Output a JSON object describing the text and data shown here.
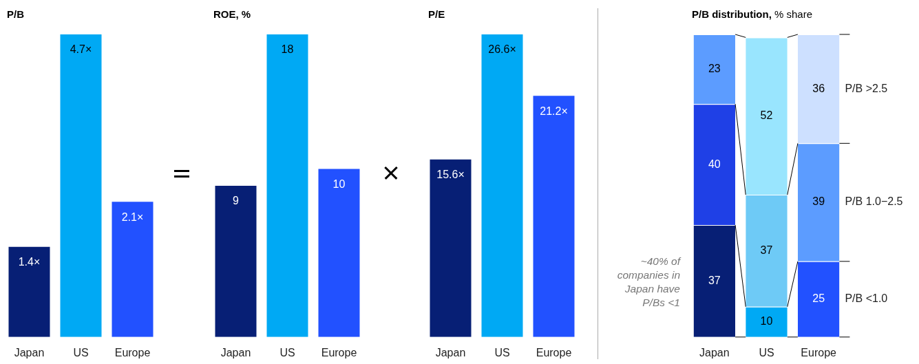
{
  "chart_data": [
    {
      "type": "bar",
      "title": "P/B",
      "categories": [
        "Japan",
        "US",
        "Europe"
      ],
      "values": [
        1.4,
        4.7,
        2.1
      ],
      "colors": [
        "#071f75",
        "#00a9f4",
        "#2251ff"
      ],
      "value_labels": [
        "1.4×",
        "4.7×",
        "2.1×"
      ]
    },
    {
      "type": "bar",
      "title": "ROE, %",
      "categories": [
        "Japan",
        "US",
        "Europe"
      ],
      "values": [
        9,
        18,
        10
      ],
      "colors": [
        "#071f75",
        "#00a9f4",
        "#2251ff"
      ],
      "data_labels": true
    },
    {
      "type": "bar",
      "title": "P/E",
      "categories": [
        "Japan",
        "US",
        "Europe"
      ],
      "values": [
        15.6,
        26.6,
        21.2
      ],
      "colors": [
        "#071f75",
        "#00a9f4",
        "#2251ff"
      ],
      "value_labels": [
        "15.6×",
        "26.6×",
        "21.2×"
      ]
    },
    {
      "type": "bar",
      "title": "P/B distribution,",
      "subtitle": "% share",
      "stacked": true,
      "data_labels": true,
      "categories": [
        "Japan",
        "US",
        "Europe"
      ],
      "series": [
        {
          "name": "P/B <1.0",
          "colors": [
            "#071f75",
            "#00a9f4",
            "#2251ff"
          ],
          "values": [
            37,
            10,
            25
          ]
        },
        {
          "name": "P/B 1.0−2.5",
          "colors": [
            "#1f40e6",
            "#6ecaf6",
            "#5c9cff"
          ],
          "values": [
            40,
            37,
            39
          ]
        },
        {
          "name": "P/B >2.5",
          "colors": [
            "#5c9cff",
            "#99e5fe",
            "#cde0ff"
          ],
          "values": [
            23,
            52,
            36
          ]
        }
      ],
      "annotations": [
        "~40% of companies in Japan have P/Bs <1"
      ]
    }
  ]
}
